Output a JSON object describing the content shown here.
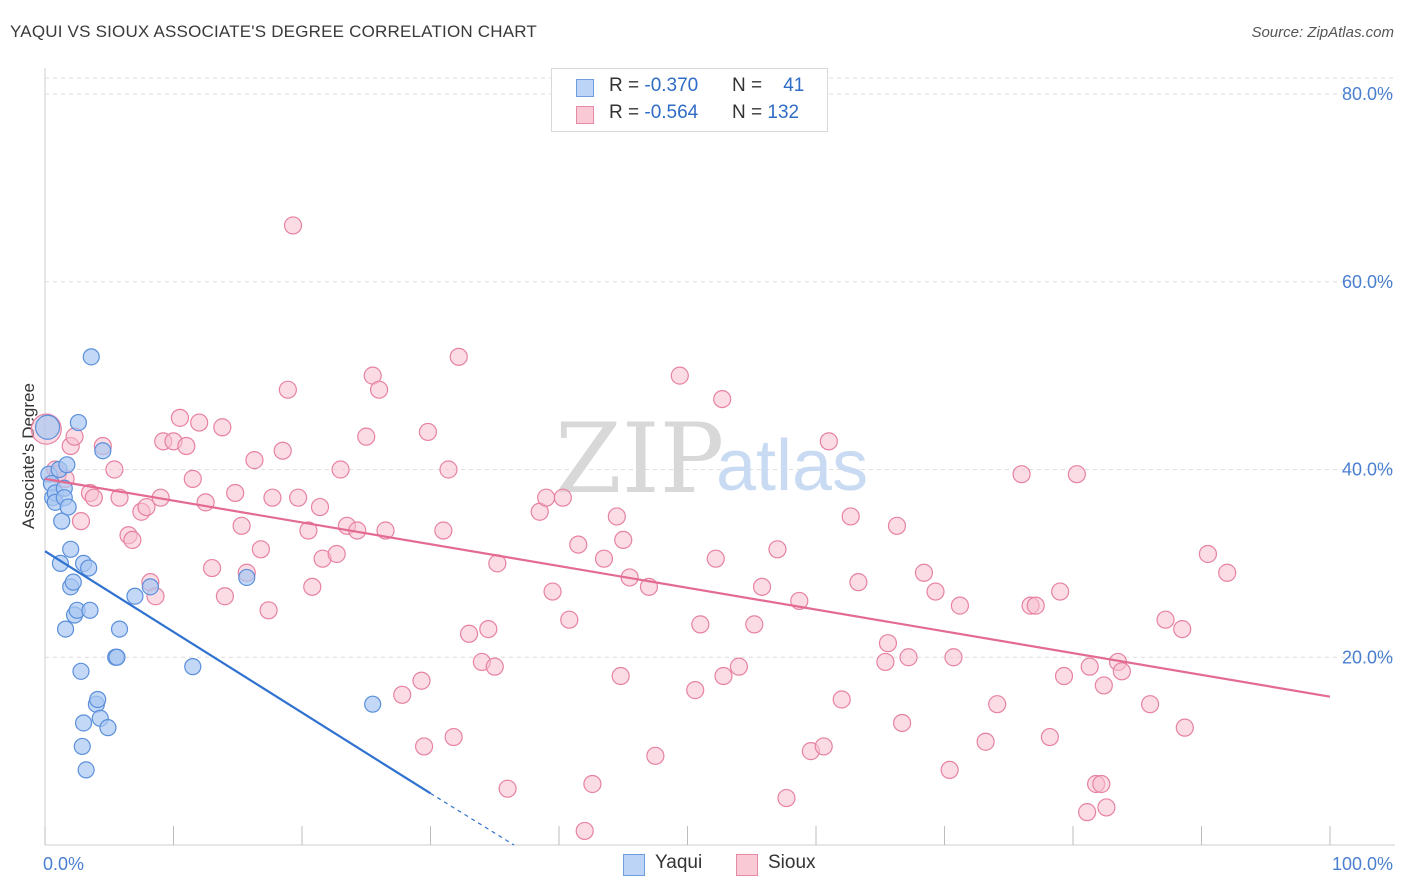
{
  "title": "YAQUI VS SIOUX ASSOCIATE'S DEGREE CORRELATION CHART",
  "source": "Source: ZipAtlas.com",
  "watermark": {
    "zip": "ZIP",
    "atlas": "atlas"
  },
  "stats": [
    {
      "r_label": "R = ",
      "r_value": "-0.370",
      "n_label": "N = ",
      "n_value": "41"
    },
    {
      "r_label": "R = ",
      "r_value": "-0.564",
      "n_label": "N = ",
      "n_value": "132"
    }
  ],
  "legend": [
    {
      "name": "Yaqui",
      "fill": "#bcd4f6",
      "stroke": "#6f9ee0"
    },
    {
      "name": "Sioux",
      "fill": "#f9c9d6",
      "stroke": "#e88aa6"
    }
  ],
  "colors": {
    "yaqui_point_fill": "#a9c8f2",
    "yaqui_point_stroke": "#5b8fdb",
    "yaqui_line": "#2f72d0",
    "sioux_point_fill": "#f7bfcf",
    "sioux_point_stroke": "#e782a1",
    "sioux_line": "#e36b92",
    "axis_text": "#4a7fd0",
    "grid": "#dddddd"
  },
  "chart_data": {
    "type": "scatter",
    "title": "YAQUI VS SIOUX ASSOCIATE'S DEGREE CORRELATION CHART",
    "xlabel": "",
    "ylabel": "Associate's Degree",
    "xlim": [
      0,
      100
    ],
    "ylim": [
      0,
      80
    ],
    "x_tick_labels": [
      {
        "value": 0,
        "label": "0.0%"
      },
      {
        "value": 100,
        "label": "100.0%"
      }
    ],
    "y_tick_labels": [
      {
        "value": 20,
        "label": "20.0%"
      },
      {
        "value": 40,
        "label": "40.0%"
      },
      {
        "value": 60,
        "label": "60.0%"
      },
      {
        "value": 80,
        "label": "80.0%"
      }
    ],
    "x_minor_ticks": [
      0,
      10,
      20,
      30,
      40,
      50,
      60,
      70,
      80,
      90,
      100
    ],
    "series": [
      {
        "name": "Yaqui",
        "points": [
          [
            0.2,
            44.5
          ],
          [
            0.3,
            39.5
          ],
          [
            0.5,
            38.5
          ],
          [
            0.6,
            37.0
          ],
          [
            0.8,
            37.5
          ],
          [
            0.8,
            36.5
          ],
          [
            1.1,
            40.0
          ],
          [
            1.2,
            30.0
          ],
          [
            1.3,
            34.5
          ],
          [
            1.5,
            38.0
          ],
          [
            1.5,
            37.0
          ],
          [
            1.6,
            23.0
          ],
          [
            1.7,
            40.5
          ],
          [
            1.8,
            36.0
          ],
          [
            2.0,
            31.5
          ],
          [
            2.0,
            27.5
          ],
          [
            2.2,
            28.0
          ],
          [
            2.3,
            24.5
          ],
          [
            2.5,
            25.0
          ],
          [
            2.6,
            45.0
          ],
          [
            2.8,
            18.5
          ],
          [
            2.9,
            10.5
          ],
          [
            3.0,
            13.0
          ],
          [
            3.0,
            30.0
          ],
          [
            3.2,
            8.0
          ],
          [
            3.4,
            29.5
          ],
          [
            3.5,
            25.0
          ],
          [
            3.6,
            52.0
          ],
          [
            4.0,
            15.0
          ],
          [
            4.1,
            15.5
          ],
          [
            4.3,
            13.5
          ],
          [
            4.5,
            42.0
          ],
          [
            4.9,
            12.5
          ],
          [
            5.5,
            20.0
          ],
          [
            5.6,
            20.0
          ],
          [
            5.8,
            23.0
          ],
          [
            7.0,
            26.5
          ],
          [
            8.2,
            27.5
          ],
          [
            11.5,
            19.0
          ],
          [
            15.7,
            28.5
          ],
          [
            25.5,
            15.0
          ]
        ],
        "trend_solid": {
          "x": [
            0,
            30
          ],
          "y": [
            31.3,
            5.5
          ]
        },
        "trend_dashed": {
          "x": [
            30,
            36.5
          ],
          "y": [
            5.5,
            0
          ]
        }
      },
      {
        "name": "Sioux",
        "points": [
          [
            0.1,
            44.3
          ],
          [
            0.8,
            40.0
          ],
          [
            1.0,
            39.5
          ],
          [
            1.6,
            39.0
          ],
          [
            2.0,
            42.5
          ],
          [
            2.3,
            43.5
          ],
          [
            2.8,
            34.5
          ],
          [
            3.5,
            37.5
          ],
          [
            3.8,
            37.0
          ],
          [
            4.5,
            42.5
          ],
          [
            5.4,
            40.0
          ],
          [
            5.8,
            37.0
          ],
          [
            6.5,
            33.0
          ],
          [
            6.8,
            32.5
          ],
          [
            7.5,
            35.5
          ],
          [
            7.9,
            36.0
          ],
          [
            8.2,
            28.0
          ],
          [
            8.6,
            26.5
          ],
          [
            9.0,
            37.0
          ],
          [
            9.2,
            43.0
          ],
          [
            10.0,
            43.0
          ],
          [
            10.5,
            45.5
          ],
          [
            11.0,
            42.5
          ],
          [
            11.5,
            39.0
          ],
          [
            12.0,
            45.0
          ],
          [
            12.5,
            36.5
          ],
          [
            13.0,
            29.5
          ],
          [
            13.8,
            44.5
          ],
          [
            14.0,
            26.5
          ],
          [
            14.8,
            37.5
          ],
          [
            15.3,
            34.0
          ],
          [
            15.7,
            29.0
          ],
          [
            16.3,
            41.0
          ],
          [
            16.8,
            31.5
          ],
          [
            17.4,
            25.0
          ],
          [
            17.7,
            37.0
          ],
          [
            18.5,
            42.0
          ],
          [
            18.9,
            48.5
          ],
          [
            19.3,
            66.0
          ],
          [
            19.7,
            37.0
          ],
          [
            20.5,
            33.5
          ],
          [
            20.8,
            27.5
          ],
          [
            21.4,
            36.0
          ],
          [
            21.6,
            30.5
          ],
          [
            22.7,
            31.0
          ],
          [
            23.0,
            40.0
          ],
          [
            23.5,
            34.0
          ],
          [
            24.3,
            33.5
          ],
          [
            25.0,
            43.5
          ],
          [
            25.5,
            50.0
          ],
          [
            26.0,
            48.5
          ],
          [
            26.5,
            33.5
          ],
          [
            27.8,
            16.0
          ],
          [
            29.3,
            17.5
          ],
          [
            29.5,
            10.5
          ],
          [
            29.8,
            44.0
          ],
          [
            31.0,
            33.5
          ],
          [
            31.4,
            40.0
          ],
          [
            31.8,
            11.5
          ],
          [
            32.2,
            52.0
          ],
          [
            33.0,
            22.5
          ],
          [
            34.0,
            19.5
          ],
          [
            34.5,
            23.0
          ],
          [
            35.0,
            19.0
          ],
          [
            35.2,
            30.0
          ],
          [
            36.0,
            6.0
          ],
          [
            38.5,
            35.5
          ],
          [
            39.0,
            37.0
          ],
          [
            39.5,
            27.0
          ],
          [
            40.3,
            37.0
          ],
          [
            40.8,
            24.0
          ],
          [
            41.5,
            32.0
          ],
          [
            42.0,
            1.5
          ],
          [
            42.6,
            6.5
          ],
          [
            43.5,
            30.5
          ],
          [
            44.5,
            35.0
          ],
          [
            44.8,
            18.0
          ],
          [
            45.0,
            32.5
          ],
          [
            45.5,
            28.5
          ],
          [
            47.0,
            27.5
          ],
          [
            47.5,
            9.5
          ],
          [
            49.4,
            50.0
          ],
          [
            50.6,
            16.5
          ],
          [
            51.0,
            23.5
          ],
          [
            52.2,
            30.5
          ],
          [
            52.7,
            47.5
          ],
          [
            52.8,
            18.0
          ],
          [
            54.0,
            19.0
          ],
          [
            55.2,
            23.5
          ],
          [
            55.8,
            27.5
          ],
          [
            57.0,
            31.5
          ],
          [
            57.7,
            5.0
          ],
          [
            58.7,
            26.0
          ],
          [
            59.6,
            10.0
          ],
          [
            60.6,
            10.5
          ],
          [
            61.0,
            43.0
          ],
          [
            62.0,
            15.5
          ],
          [
            62.7,
            35.0
          ],
          [
            63.3,
            28.0
          ],
          [
            65.4,
            19.5
          ],
          [
            65.6,
            21.5
          ],
          [
            66.3,
            34.0
          ],
          [
            66.7,
            13.0
          ],
          [
            67.2,
            20.0
          ],
          [
            68.4,
            29.0
          ],
          [
            69.3,
            27.0
          ],
          [
            70.4,
            8.0
          ],
          [
            70.7,
            20.0
          ],
          [
            71.2,
            25.5
          ],
          [
            73.2,
            11.0
          ],
          [
            74.1,
            15.0
          ],
          [
            76.0,
            39.5
          ],
          [
            76.7,
            25.5
          ],
          [
            77.1,
            25.5
          ],
          [
            78.2,
            11.5
          ],
          [
            79.0,
            27.0
          ],
          [
            79.3,
            18.0
          ],
          [
            80.3,
            39.5
          ],
          [
            81.1,
            3.5
          ],
          [
            81.3,
            19.0
          ],
          [
            81.8,
            6.5
          ],
          [
            82.2,
            6.5
          ],
          [
            82.4,
            17.0
          ],
          [
            82.6,
            4.0
          ],
          [
            83.5,
            19.5
          ],
          [
            83.8,
            18.5
          ],
          [
            86.0,
            15.0
          ],
          [
            87.2,
            24.0
          ],
          [
            88.5,
            23.0
          ],
          [
            88.7,
            12.5
          ],
          [
            90.5,
            31.0
          ],
          [
            92.0,
            29.0
          ]
        ],
        "trend_solid": {
          "x": [
            0,
            100
          ],
          "y": [
            39.0,
            15.8
          ]
        }
      }
    ]
  }
}
